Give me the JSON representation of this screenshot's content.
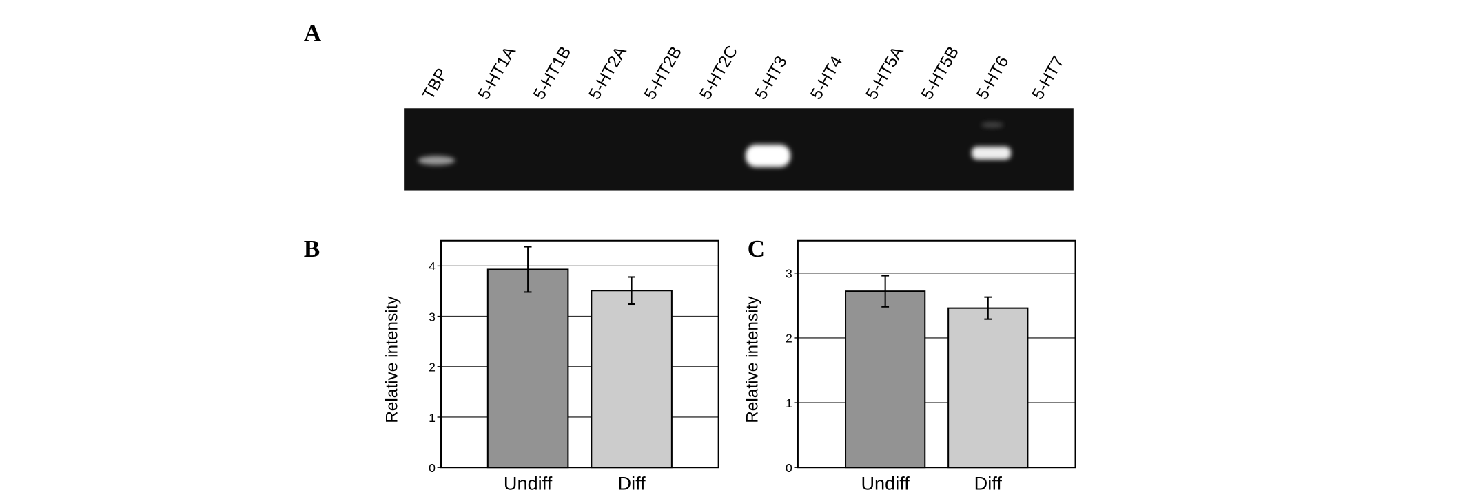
{
  "panel_labels": [
    "A",
    "B",
    "C"
  ],
  "gel": {
    "lanes": [
      "TBP",
      "5-HT1A",
      "5-HT1B",
      "5-HT2A",
      "5-HT2B",
      "5-HT2C",
      "5-HT3",
      "5-HT4",
      "5-HT5A",
      "5-HT5B",
      "5-HT6",
      "5-HT7"
    ]
  },
  "chart_data": [
    {
      "type": "bar",
      "y_label": "Relative intensity",
      "categories": [
        "Undiff",
        "Diff"
      ],
      "values": [
        3.93,
        3.51
      ],
      "errors": [
        0.45,
        0.27
      ],
      "colors": [
        "#939393",
        "#cccccc"
      ],
      "ylim": [
        0,
        4.5
      ],
      "yticks": [
        0,
        1,
        2,
        3,
        4
      ],
      "grid": true
    },
    {
      "type": "bar",
      "y_label": "Relative intensity",
      "categories": [
        "Undiff",
        "Diff"
      ],
      "values": [
        2.72,
        2.46
      ],
      "errors": [
        0.24,
        0.17
      ],
      "colors": [
        "#939393",
        "#cccccc"
      ],
      "ylim": [
        0,
        3.5
      ],
      "yticks": [
        0,
        1,
        2,
        3
      ],
      "grid": true
    }
  ]
}
